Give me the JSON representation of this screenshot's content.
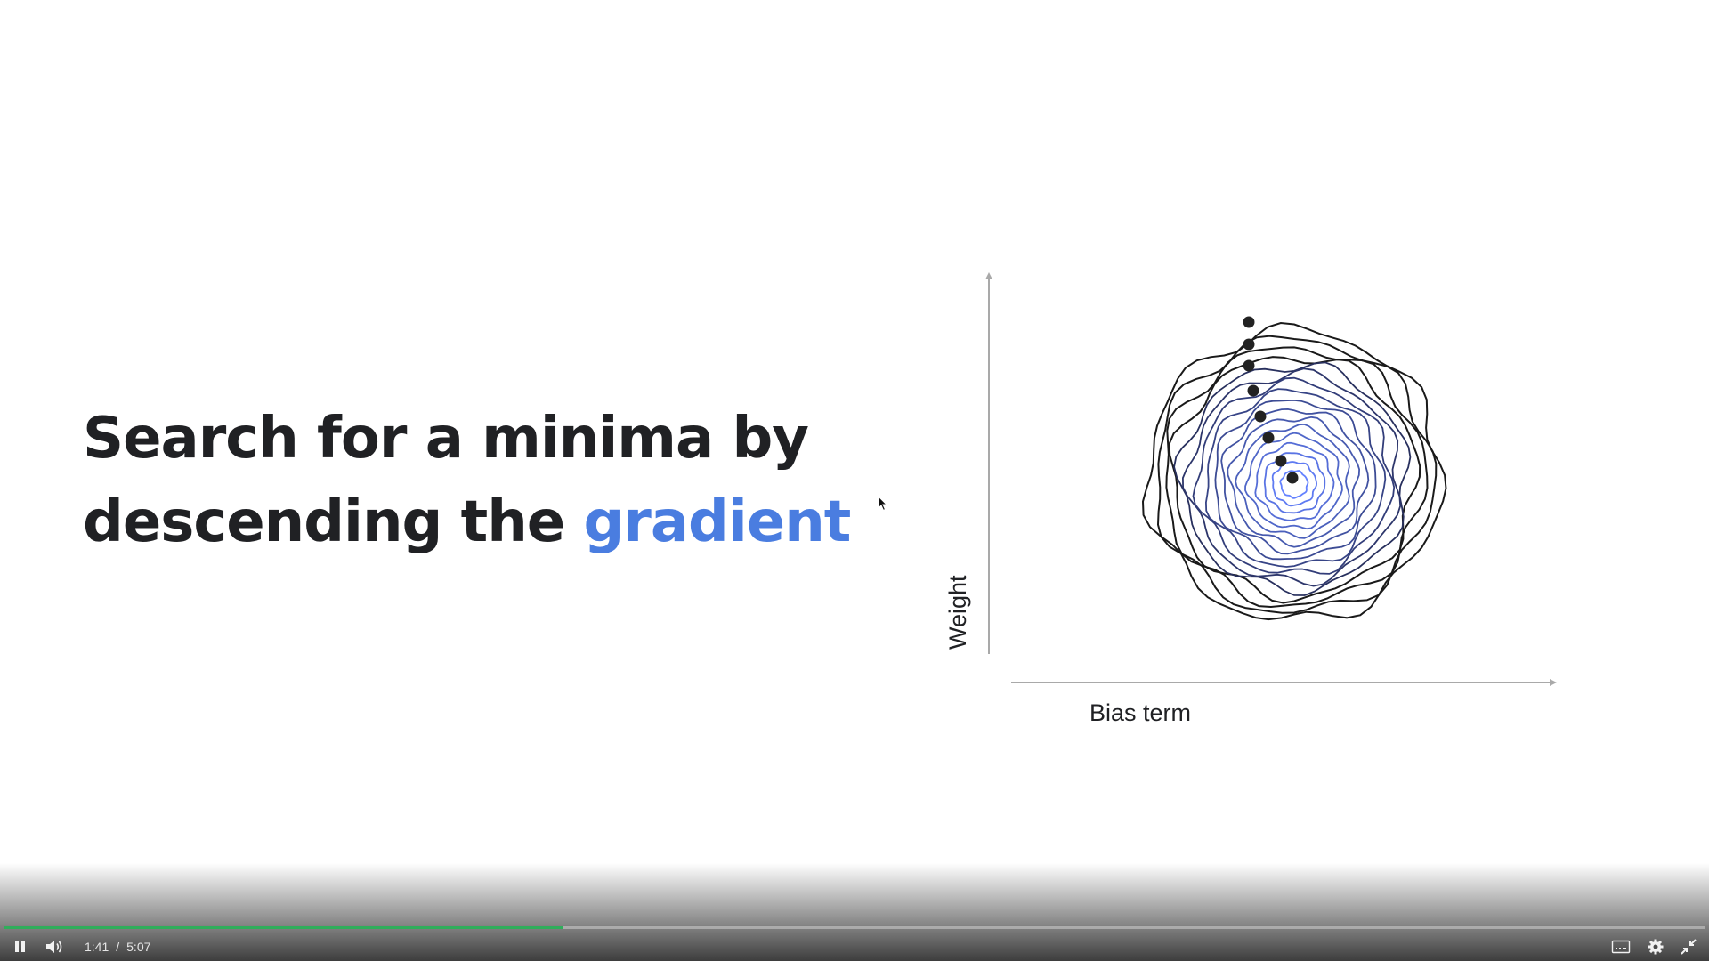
{
  "slide": {
    "headline_line1": "Search for a minima by",
    "headline_line2_prefix": "descending the",
    "headline_accent": "gradient",
    "accent_color": "#4a7de0",
    "y_axis_label": "Weight",
    "x_axis_label": "Bias term"
  },
  "player": {
    "current_time": "1:41",
    "separator": "/",
    "duration": "5:07",
    "progress_fraction": 0.329,
    "progress_color": "#2fae5b",
    "icons": [
      "pause-icon",
      "volume-icon",
      "closed-captions-icon",
      "gear-icon",
      "exit-fullscreen-icon"
    ]
  }
}
